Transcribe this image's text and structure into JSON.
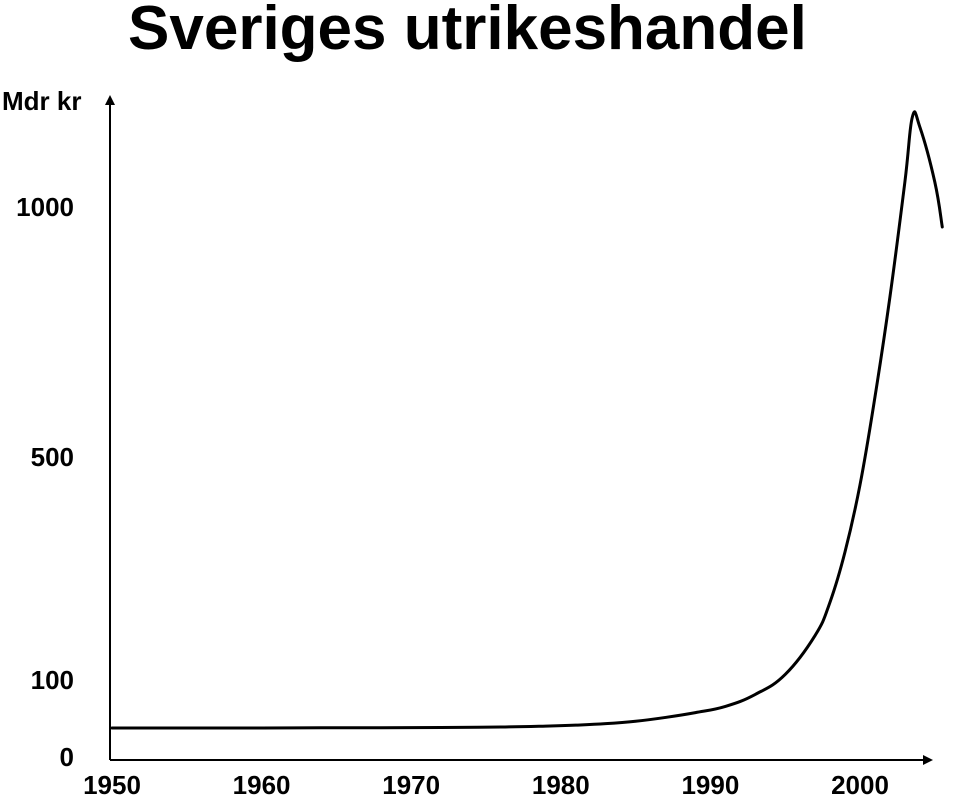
{
  "chart_data": {
    "type": "line",
    "title": "Sveriges utrikeshandel",
    "ylabel": "Mdr kr",
    "xlabel": "",
    "x_ticks": [
      "1950",
      "1960",
      "1970",
      "1980",
      "1990",
      "2000"
    ],
    "y_ticks": [
      "0",
      "100",
      "500",
      "1000"
    ],
    "xlim": [
      1950,
      2006
    ],
    "ylim_note": "non-linear axis",
    "series": [
      {
        "x": [
          1950,
          1955,
          1960,
          1964,
          1968,
          1972,
          1976,
          1979,
          1981,
          1983,
          1985,
          1987,
          1989,
          1991,
          1993,
          1995,
          1997,
          1998,
          1999,
          2000,
          2001,
          2002,
          2003,
          2003.5,
          2004,
          2005,
          2005.5
        ],
        "y": [
          0,
          0,
          0,
          0.5,
          0.5,
          1,
          2,
          4,
          6,
          9,
          14,
          22,
          32,
          45,
          70,
          110,
          180,
          240,
          330,
          450,
          620,
          820,
          1050,
          1180,
          1160,
          1050,
          960
        ]
      }
    ]
  }
}
